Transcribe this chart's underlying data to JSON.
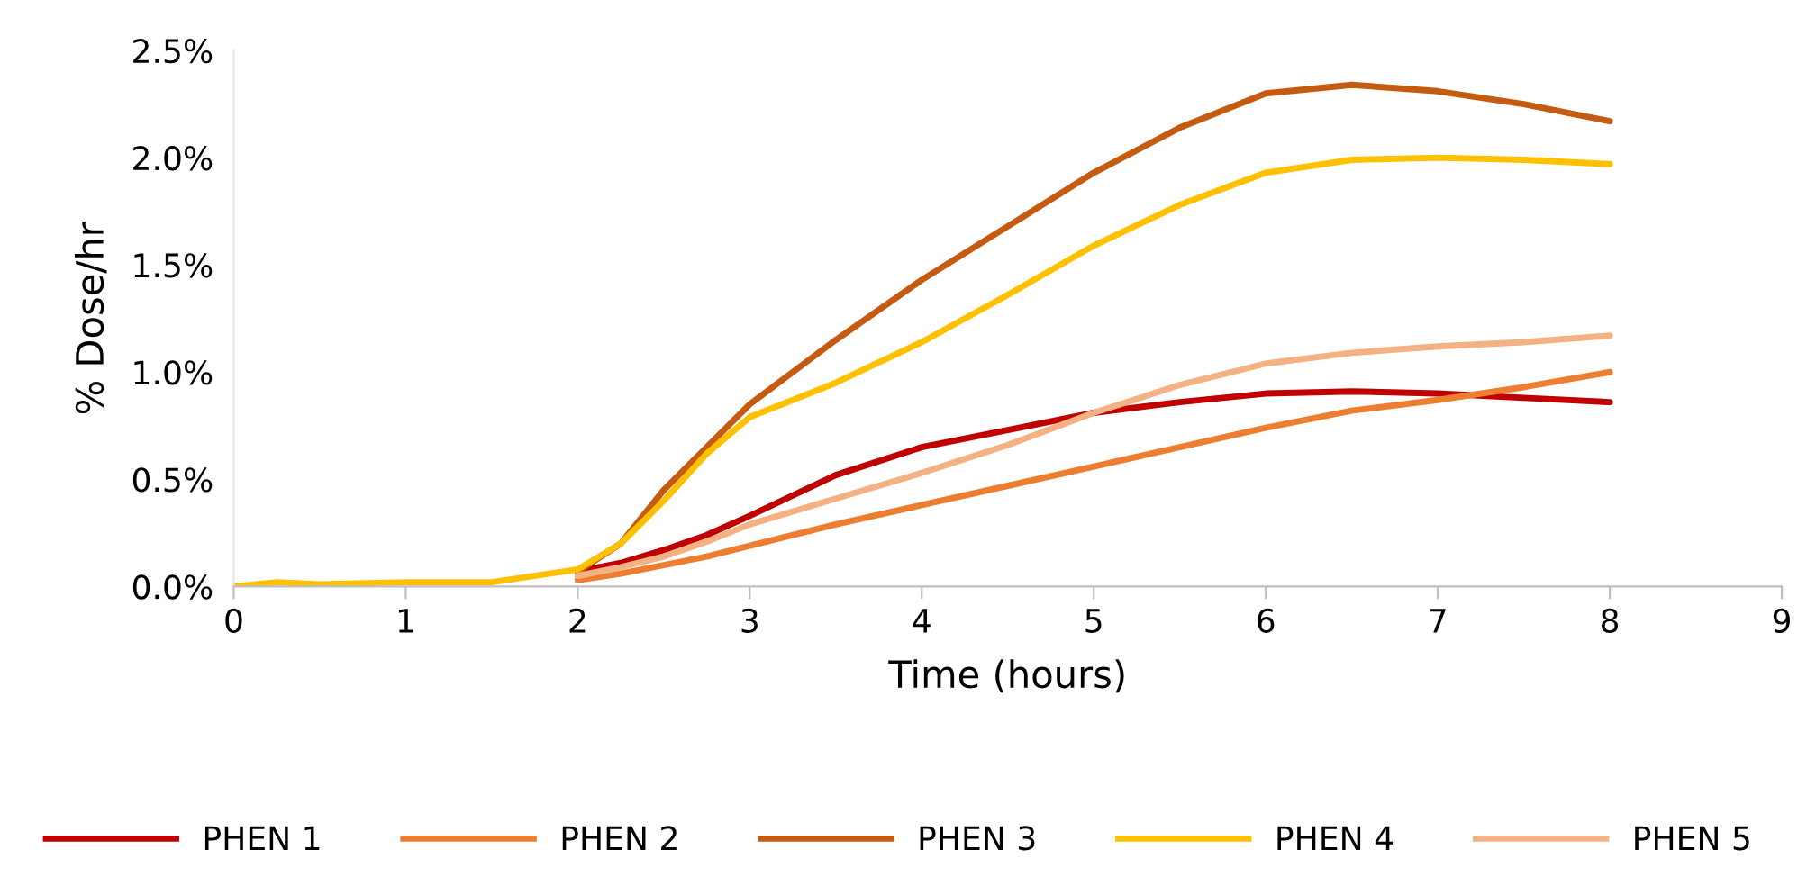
{
  "chart_data": {
    "type": "line",
    "xlabel": "Time (hours)",
    "ylabel": "% Dose/hr",
    "x": [
      0,
      0.25,
      0.5,
      1,
      1.5,
      2,
      2.25,
      2.5,
      2.75,
      3,
      3.5,
      4,
      4.5,
      5,
      5.5,
      6,
      6.5,
      7,
      7.5,
      8
    ],
    "series": [
      {
        "name": "PHEN 1",
        "color": "#c00000",
        "values": [
          null,
          null,
          null,
          null,
          null,
          0.07,
          0.11,
          0.17,
          0.24,
          0.33,
          0.52,
          0.65,
          0.73,
          0.81,
          0.86,
          0.9,
          0.91,
          0.9,
          0.88,
          0.86
        ]
      },
      {
        "name": "PHEN 2",
        "color": "#ed7d31",
        "values": [
          null,
          null,
          null,
          null,
          null,
          0.03,
          0.06,
          0.1,
          0.14,
          0.19,
          0.29,
          0.38,
          0.47,
          0.56,
          0.65,
          0.74,
          0.82,
          0.87,
          0.93,
          1.0
        ]
      },
      {
        "name": "PHEN 3",
        "color": "#c55a11",
        "values": [
          null,
          null,
          null,
          null,
          null,
          0.07,
          0.2,
          0.45,
          0.65,
          0.85,
          1.15,
          1.43,
          1.68,
          1.93,
          2.14,
          2.3,
          2.34,
          2.31,
          2.25,
          2.17
        ]
      },
      {
        "name": "PHEN 4",
        "color": "#ffc000",
        "values": [
          0,
          0.02,
          0.01,
          0.02,
          0.02,
          0.08,
          0.2,
          0.4,
          0.62,
          0.79,
          0.95,
          1.14,
          1.36,
          1.59,
          1.78,
          1.93,
          1.99,
          2.0,
          1.99,
          1.97
        ]
      },
      {
        "name": "PHEN 5",
        "color": "#f4b183",
        "values": [
          null,
          null,
          null,
          null,
          null,
          0.05,
          0.09,
          0.14,
          0.21,
          0.29,
          0.41,
          0.53,
          0.66,
          0.81,
          0.94,
          1.04,
          1.09,
          1.12,
          1.14,
          1.17
        ]
      }
    ],
    "xlim": [
      0,
      9
    ],
    "xticks": [
      0,
      1,
      2,
      3,
      4,
      5,
      6,
      7,
      8,
      9
    ],
    "ylim": [
      0,
      2.5
    ],
    "yticks": [
      {
        "value": 0,
        "label": "0.0%"
      },
      {
        "value": 0.5,
        "label": "0.5%"
      },
      {
        "value": 1,
        "label": "1.0%"
      },
      {
        "value": 1.5,
        "label": "1.5%"
      },
      {
        "value": 2,
        "label": "2.0%"
      },
      {
        "value": 2.5,
        "label": "2.5%"
      }
    ],
    "legend": "bottom",
    "line_style": "solid",
    "marker": "none"
  }
}
